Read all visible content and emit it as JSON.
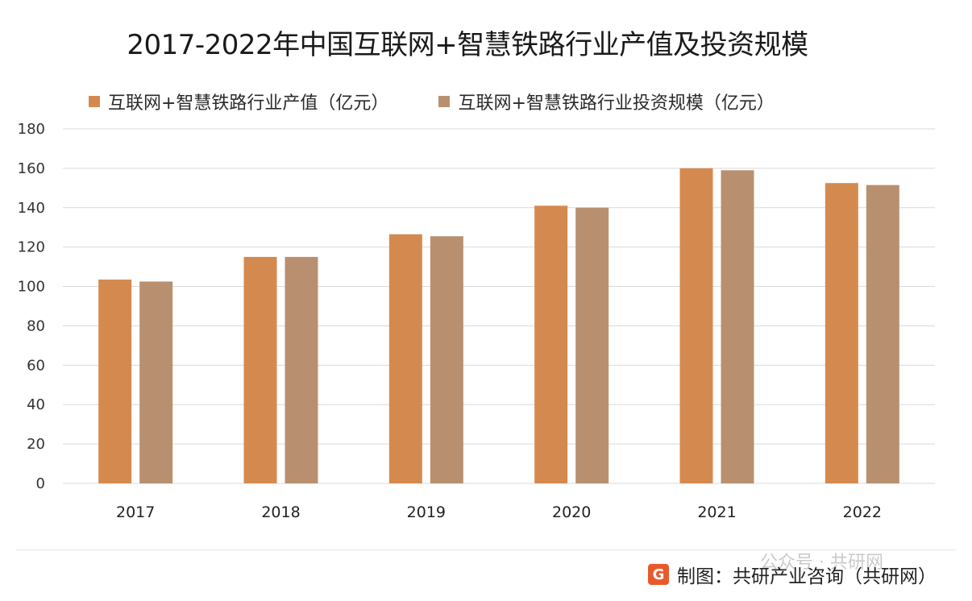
{
  "chart_data": {
    "type": "bar",
    "title": "2017-2022年中国互联网+智慧铁路行业产值及投资规模",
    "categories": [
      "2017",
      "2018",
      "2019",
      "2020",
      "2021",
      "2022"
    ],
    "series": [
      {
        "name": "互联网+智慧铁路行业产值（亿元）",
        "color": "#D48A4F",
        "values": [
          103.5,
          115,
          126.5,
          141,
          160,
          152.5
        ]
      },
      {
        "name": "互联网+智慧铁路行业投资规模（亿元）",
        "color": "#B89070",
        "values": [
          102.5,
          115,
          125.5,
          140,
          159,
          151.5
        ]
      }
    ],
    "ylim": [
      0,
      180
    ],
    "yticks": [
      0,
      20,
      40,
      60,
      80,
      100,
      120,
      140,
      160,
      180
    ],
    "grid": true,
    "legend_position": "top"
  },
  "credit": {
    "logo_letter": "G",
    "text": "制图：共研产业咨询（共研网）",
    "watermark": "公众号 · 共研网"
  }
}
